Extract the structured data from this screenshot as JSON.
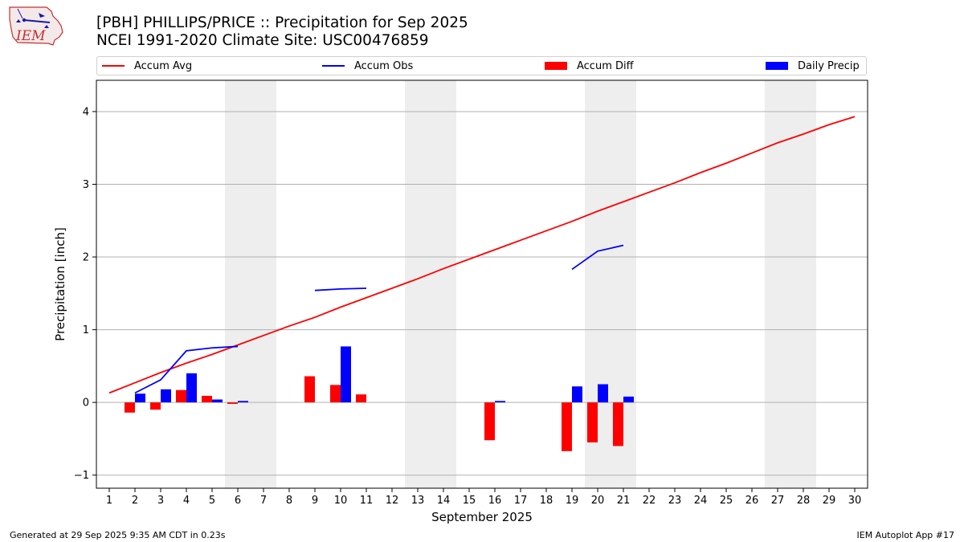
{
  "header": {
    "logo_text": "IEM",
    "title_line1": "[PBH] PHILLIPS/PRICE :: Precipitation for Sep 2025",
    "title_line2": "NCEI 1991-2020 Climate Site: USC00476859"
  },
  "legend": {
    "items": [
      {
        "label": "Accum Avg",
        "kind": "line",
        "color": "#ff0000"
      },
      {
        "label": "Accum Obs",
        "kind": "line",
        "color": "#0000ff"
      },
      {
        "label": "Accum Diff",
        "kind": "patch",
        "color": "#ff0000"
      },
      {
        "label": "Daily Precip",
        "kind": "patch",
        "color": "#0000ff"
      }
    ]
  },
  "footer": {
    "left": "Generated at 29 Sep 2025 9:35 AM CDT in 0.23s",
    "right": "IEM Autoplot App #17"
  },
  "chart_data": {
    "type": "bar",
    "xlabel": "September 2025",
    "ylabel": "Precipitation [inch]",
    "xlim": [
      0.5,
      30.5
    ],
    "ylim": [
      -1.18,
      4.43
    ],
    "x_ticks": [
      1,
      2,
      3,
      4,
      5,
      6,
      7,
      8,
      9,
      10,
      11,
      12,
      13,
      14,
      15,
      16,
      17,
      18,
      19,
      20,
      21,
      22,
      23,
      24,
      25,
      26,
      27,
      28,
      29,
      30
    ],
    "y_ticks": [
      -1,
      0,
      1,
      2,
      3,
      4
    ],
    "grid": "horizontal",
    "legend_position": "top",
    "weekend_shading": [
      [
        6,
        7
      ],
      [
        13,
        14
      ],
      [
        20,
        21
      ],
      [
        27,
        28
      ]
    ],
    "accum_avg": {
      "name": "Accum Avg",
      "color": "#ff0000",
      "x": [
        1,
        2,
        3,
        4,
        5,
        6,
        7,
        8,
        9,
        10,
        11,
        12,
        13,
        14,
        15,
        16,
        17,
        18,
        19,
        20,
        21,
        22,
        23,
        24,
        25,
        26,
        27,
        28,
        29,
        30
      ],
      "y": [
        0.13,
        0.27,
        0.41,
        0.54,
        0.66,
        0.79,
        0.92,
        1.05,
        1.17,
        1.31,
        1.44,
        1.57,
        1.7,
        1.84,
        1.97,
        2.1,
        2.23,
        2.36,
        2.49,
        2.63,
        2.76,
        2.89,
        3.02,
        3.16,
        3.29,
        3.43,
        3.57,
        3.69,
        3.82,
        3.93
      ]
    },
    "accum_obs": {
      "name": "Accum Obs",
      "color": "#0000ff",
      "segments": [
        {
          "x": [
            2,
            3,
            4,
            5,
            6
          ],
          "y": [
            0.13,
            0.31,
            0.71,
            0.75,
            0.77
          ]
        },
        {
          "x": [
            9,
            10,
            11
          ],
          "y": [
            1.54,
            1.56,
            1.57
          ]
        },
        {
          "x": [
            19,
            20,
            21
          ],
          "y": [
            1.83,
            2.08,
            2.16
          ]
        }
      ]
    },
    "accum_diff": {
      "name": "Accum Diff",
      "color": "#ff0000",
      "x": [
        2,
        3,
        4,
        5,
        6,
        9,
        10,
        11,
        16,
        19,
        20,
        21
      ],
      "y": [
        -0.14,
        -0.1,
        0.17,
        0.09,
        -0.02,
        0.36,
        0.24,
        0.11,
        -0.52,
        -0.67,
        -0.55,
        -0.6
      ]
    },
    "daily_precip": {
      "name": "Daily Precip",
      "color": "#0000ff",
      "x": [
        2,
        3,
        4,
        5,
        6,
        10,
        16,
        19,
        20,
        21
      ],
      "y": [
        0.12,
        0.18,
        0.4,
        0.04,
        0.02,
        0.77,
        0.02,
        0.22,
        0.25,
        0.08
      ]
    }
  }
}
